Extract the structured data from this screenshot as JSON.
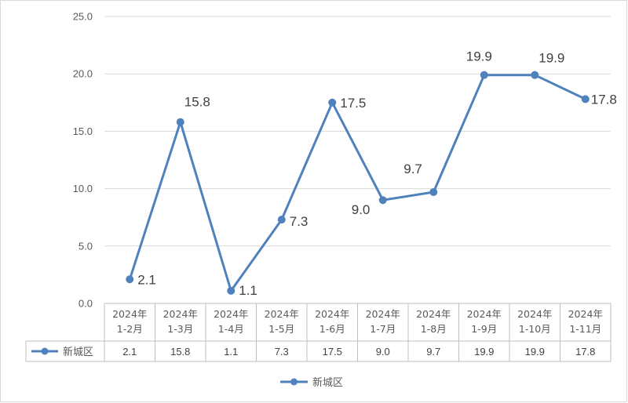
{
  "chart_data": {
    "type": "line",
    "categories": [
      [
        "2024年",
        "1-2月"
      ],
      [
        "2024年",
        "1-3月"
      ],
      [
        "2024年",
        "1-4月"
      ],
      [
        "2024年",
        "1-5月"
      ],
      [
        "2024年",
        "1-6月"
      ],
      [
        "2024年",
        "1-7月"
      ],
      [
        "2024年",
        "1-8月"
      ],
      [
        "2024年",
        "1-9月"
      ],
      [
        "2024年",
        "1-10月"
      ],
      [
        "2024年",
        "1-11月"
      ]
    ],
    "series": [
      {
        "name": "新城区",
        "values": [
          2.1,
          15.8,
          1.1,
          7.3,
          17.5,
          9.0,
          9.7,
          19.9,
          19.9,
          17.8
        ],
        "labels": [
          "2.1",
          "15.8",
          "1.1",
          "7.3",
          "17.5",
          "9.0",
          "9.7",
          "19.9",
          "19.9",
          "17.8"
        ],
        "color": "#4f81bd"
      }
    ],
    "y_ticks": [
      "0.0",
      "5.0",
      "10.0",
      "15.0",
      "20.0",
      "25.0"
    ],
    "ylim": [
      0,
      25
    ],
    "grid": true,
    "data_table": true,
    "legend_position": "bottom",
    "title": "",
    "xlabel": "",
    "ylabel": ""
  }
}
